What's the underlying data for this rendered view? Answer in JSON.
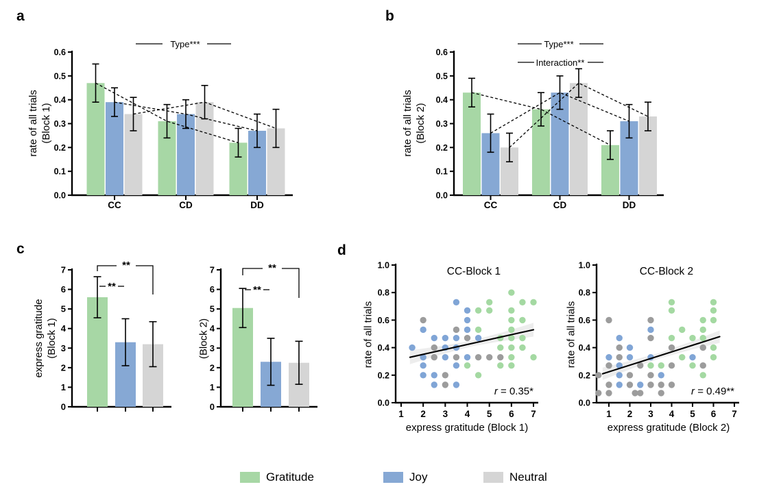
{
  "palette": {
    "gratitude": "#a7d7a5",
    "joy": "#86a8d4",
    "neutral": "#d5d5d5",
    "scatter_gratitude": "#a4d9a2",
    "scatter_joy": "#80a5d6",
    "scatter_neutral": "#9c9c9c",
    "axis": "#000000",
    "band": "#e3e3e3"
  },
  "panel_labels": {
    "a": "a",
    "b": "b",
    "c": "c",
    "d": "d"
  },
  "legend": {
    "items": [
      {
        "label": "Gratitude",
        "key": "gratitude"
      },
      {
        "label": "Joy",
        "key": "joy"
      },
      {
        "label": "Neutral",
        "key": "neutral"
      }
    ]
  },
  "chart_data": [
    {
      "id": "a",
      "type": "bar",
      "ylabel_line1": "rate of all trials",
      "ylabel_line2": "(Block 1)",
      "categories": [
        "CC",
        "CD",
        "DD"
      ],
      "yticks": [
        "0.0",
        "0.1",
        "0.2",
        "0.3",
        "0.4",
        "0.5",
        "0.6"
      ],
      "ylim": [
        0,
        0.6
      ],
      "series": [
        {
          "name": "Gratitude",
          "values": [
            0.47,
            0.31,
            0.22
          ],
          "errors": [
            0.08,
            0.07,
            0.06
          ]
        },
        {
          "name": "Joy",
          "values": [
            0.39,
            0.34,
            0.27
          ],
          "errors": [
            0.06,
            0.06,
            0.07
          ]
        },
        {
          "name": "Neutral",
          "values": [
            0.34,
            0.39,
            0.28
          ],
          "errors": [
            0.07,
            0.07,
            0.08
          ]
        }
      ],
      "annotations": [
        "Type***"
      ],
      "connectors": true
    },
    {
      "id": "b",
      "type": "bar",
      "ylabel_line1": "rate of all trials",
      "ylabel_line2": "(Block 2)",
      "categories": [
        "CC",
        "CD",
        "DD"
      ],
      "yticks": [
        "0.0",
        "0.1",
        "0.2",
        "0.3",
        "0.4",
        "0.5",
        "0.6"
      ],
      "ylim": [
        0,
        0.6
      ],
      "series": [
        {
          "name": "Gratitude",
          "values": [
            0.43,
            0.36,
            0.21
          ],
          "errors": [
            0.06,
            0.07,
            0.06
          ]
        },
        {
          "name": "Joy",
          "values": [
            0.26,
            0.43,
            0.31
          ],
          "errors": [
            0.08,
            0.07,
            0.07
          ]
        },
        {
          "name": "Neutral",
          "values": [
            0.2,
            0.47,
            0.33
          ],
          "errors": [
            0.06,
            0.06,
            0.06
          ]
        }
      ],
      "annotations": [
        "Type***",
        "Interaction**"
      ],
      "connectors": true
    },
    {
      "id": "c1",
      "type": "bar",
      "ylabel_line1": "express gratitude",
      "ylabel_line2": "(Block 1)",
      "categories": [],
      "yticks": [
        "0",
        "1",
        "2",
        "3",
        "4",
        "5",
        "6",
        "7"
      ],
      "ylim": [
        0,
        7
      ],
      "series": [
        {
          "name": "Gratitude",
          "values": [
            5.6
          ],
          "errors": [
            1.05
          ]
        },
        {
          "name": "Joy",
          "values": [
            3.3
          ],
          "errors": [
            1.2
          ]
        },
        {
          "name": "Neutral",
          "values": [
            3.2
          ],
          "errors": [
            1.15
          ]
        }
      ],
      "sig_outer": "**",
      "sig_inner": "**"
    },
    {
      "id": "c2",
      "type": "bar",
      "ylabel_line2": "(Block 2)",
      "categories": [],
      "yticks": [
        "0",
        "1",
        "2",
        "3",
        "4",
        "5",
        "6",
        "7"
      ],
      "ylim": [
        0,
        7
      ],
      "series": [
        {
          "name": "Gratitude",
          "values": [
            5.05
          ],
          "errors": [
            1.0
          ]
        },
        {
          "name": "Joy",
          "values": [
            2.3
          ],
          "errors": [
            1.2
          ]
        },
        {
          "name": "Neutral",
          "values": [
            2.25
          ],
          "errors": [
            1.1
          ]
        }
      ],
      "sig_outer": "**",
      "sig_inner": "**"
    },
    {
      "id": "d1",
      "type": "scatter",
      "title": "CC-Block 1",
      "xlabel": "express gratitude (Block 1)",
      "ylabel": "rate of all trials",
      "r_var": "r",
      "r_text": "= 0.35*",
      "xticks": [
        "1",
        "2",
        "3",
        "4",
        "5",
        "6",
        "7"
      ],
      "yticks": [
        "0.0",
        "0.2",
        "0.4",
        "0.6",
        "0.8",
        "1.0"
      ],
      "xlim": [
        1,
        7
      ],
      "ylim": [
        0,
        1
      ],
      "fit": {
        "x1": 1.4,
        "y1": 0.33,
        "x2": 7.0,
        "y2": 0.53
      },
      "points": [
        [
          6,
          0.8,
          "G"
        ],
        [
          3.5,
          0.73,
          "B"
        ],
        [
          5,
          0.73,
          "G"
        ],
        [
          6.5,
          0.73,
          "G"
        ],
        [
          7,
          0.73,
          "G"
        ],
        [
          4,
          0.67,
          "B"
        ],
        [
          4.5,
          0.67,
          "G"
        ],
        [
          5,
          0.67,
          "G"
        ],
        [
          6,
          0.67,
          "G"
        ],
        [
          2,
          0.6,
          "N"
        ],
        [
          4,
          0.6,
          "B"
        ],
        [
          6,
          0.6,
          "G"
        ],
        [
          6.5,
          0.6,
          "G"
        ],
        [
          2,
          0.53,
          "B"
        ],
        [
          3.5,
          0.53,
          "N"
        ],
        [
          4,
          0.53,
          "B"
        ],
        [
          4.5,
          0.53,
          "G"
        ],
        [
          6,
          0.53,
          "G"
        ],
        [
          2.5,
          0.47,
          "B"
        ],
        [
          3,
          0.47,
          "B"
        ],
        [
          3.5,
          0.47,
          "B"
        ],
        [
          4,
          0.47,
          "N"
        ],
        [
          4.5,
          0.47,
          "B"
        ],
        [
          5.5,
          0.47,
          "G"
        ],
        [
          6,
          0.47,
          "G"
        ],
        [
          6.5,
          0.47,
          "G"
        ],
        [
          1.5,
          0.4,
          "B"
        ],
        [
          2.5,
          0.4,
          "N"
        ],
        [
          3,
          0.4,
          "B"
        ],
        [
          3.5,
          0.4,
          "B"
        ],
        [
          5.5,
          0.4,
          "G"
        ],
        [
          6,
          0.4,
          "G"
        ],
        [
          6.5,
          0.4,
          "G"
        ],
        [
          2,
          0.33,
          "B"
        ],
        [
          2.5,
          0.33,
          "N"
        ],
        [
          3,
          0.33,
          "B"
        ],
        [
          3.5,
          0.33,
          "N"
        ],
        [
          4,
          0.33,
          "B"
        ],
        [
          4.5,
          0.33,
          "N"
        ],
        [
          5,
          0.33,
          "N"
        ],
        [
          5.5,
          0.33,
          "N"
        ],
        [
          6,
          0.33,
          "G"
        ],
        [
          7,
          0.33,
          "G"
        ],
        [
          2,
          0.27,
          "B"
        ],
        [
          3.5,
          0.27,
          "B"
        ],
        [
          4,
          0.27,
          "G"
        ],
        [
          5.5,
          0.27,
          "G"
        ],
        [
          6,
          0.27,
          "G"
        ],
        [
          2,
          0.2,
          "B"
        ],
        [
          2.5,
          0.2,
          "B"
        ],
        [
          3,
          0.2,
          "N"
        ],
        [
          4.5,
          0.2,
          "G"
        ],
        [
          2.5,
          0.13,
          "B"
        ],
        [
          3,
          0.13,
          "N"
        ],
        [
          3.5,
          0.13,
          "B"
        ]
      ]
    },
    {
      "id": "d2",
      "type": "scatter",
      "title": "CC-Block 2",
      "xlabel": "express gratitude (Block 2)",
      "ylabel": "rate of all trials",
      "r_var": "r",
      "r_text": "= 0.49**",
      "xticks": [
        "1",
        "2",
        "3",
        "4",
        "5",
        "6",
        "7"
      ],
      "yticks": [
        "0.0",
        "0.2",
        "0.4",
        "0.6",
        "0.8",
        "1.0"
      ],
      "xlim": [
        1,
        7
      ],
      "ylim": [
        0,
        1
      ],
      "fit": {
        "x1": 0.7,
        "y1": 0.21,
        "x2": 6.3,
        "y2": 0.48
      },
      "points": [
        [
          4,
          0.73,
          "G"
        ],
        [
          6,
          0.73,
          "G"
        ],
        [
          4,
          0.67,
          "G"
        ],
        [
          6,
          0.67,
          "G"
        ],
        [
          1,
          0.6,
          "N"
        ],
        [
          3,
          0.6,
          "N"
        ],
        [
          5.5,
          0.6,
          "G"
        ],
        [
          6,
          0.6,
          "G"
        ],
        [
          3,
          0.53,
          "B"
        ],
        [
          4.5,
          0.53,
          "G"
        ],
        [
          5.5,
          0.53,
          "G"
        ],
        [
          1.5,
          0.47,
          "B"
        ],
        [
          3,
          0.47,
          "N"
        ],
        [
          4,
          0.47,
          "G"
        ],
        [
          5,
          0.47,
          "G"
        ],
        [
          5.5,
          0.47,
          "G"
        ],
        [
          1.5,
          0.4,
          "N"
        ],
        [
          2,
          0.4,
          "B"
        ],
        [
          4,
          0.4,
          "N"
        ],
        [
          5.5,
          0.4,
          "N"
        ],
        [
          6,
          0.4,
          "G"
        ],
        [
          1,
          0.33,
          "B"
        ],
        [
          1.5,
          0.33,
          "N"
        ],
        [
          2,
          0.33,
          "B"
        ],
        [
          3,
          0.33,
          "B"
        ],
        [
          4.5,
          0.33,
          "G"
        ],
        [
          5,
          0.33,
          "B"
        ],
        [
          6,
          0.33,
          "G"
        ],
        [
          1,
          0.27,
          "N"
        ],
        [
          1.5,
          0.27,
          "B"
        ],
        [
          2.5,
          0.27,
          "N"
        ],
        [
          3,
          0.27,
          "G"
        ],
        [
          3.5,
          0.27,
          "G"
        ],
        [
          4,
          0.27,
          "N"
        ],
        [
          5,
          0.27,
          "G"
        ],
        [
          5.5,
          0.27,
          "N"
        ],
        [
          0.5,
          0.2,
          "N"
        ],
        [
          1.5,
          0.2,
          "B"
        ],
        [
          2,
          0.2,
          "N"
        ],
        [
          3,
          0.2,
          "N"
        ],
        [
          3.5,
          0.2,
          "B"
        ],
        [
          5.5,
          0.2,
          "G"
        ],
        [
          1,
          0.13,
          "N"
        ],
        [
          1.5,
          0.13,
          "B"
        ],
        [
          2,
          0.13,
          "N"
        ],
        [
          2.5,
          0.13,
          "B"
        ],
        [
          3,
          0.13,
          "N"
        ],
        [
          3.5,
          0.13,
          "N"
        ],
        [
          4,
          0.13,
          "N"
        ],
        [
          0.5,
          0.07,
          "N"
        ],
        [
          1,
          0.07,
          "N"
        ],
        [
          2.25,
          0.07,
          "N"
        ],
        [
          2.5,
          0.07,
          "N"
        ],
        [
          3.5,
          0.07,
          "N"
        ]
      ]
    }
  ]
}
